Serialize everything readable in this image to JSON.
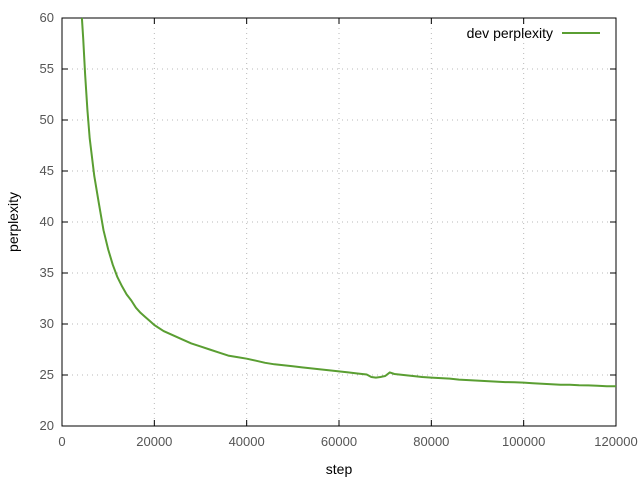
{
  "chart_data": {
    "type": "line",
    "xlabel": "step",
    "ylabel": "perplexity",
    "xlim": [
      0,
      120000
    ],
    "ylim": [
      20,
      60
    ],
    "xticks": [
      0,
      20000,
      40000,
      60000,
      80000,
      100000,
      120000
    ],
    "yticks": [
      20,
      25,
      30,
      35,
      40,
      45,
      50,
      55,
      60
    ],
    "grid": true,
    "legend_position": "top-right",
    "series": [
      {
        "name": "dev perplexity",
        "color": "#5a9e32",
        "x": [
          4300,
          4600,
          5000,
          5500,
          6000,
          7000,
          8000,
          9000,
          10000,
          11000,
          12000,
          13000,
          14000,
          15000,
          16000,
          17000,
          18000,
          19000,
          20000,
          22000,
          24000,
          26000,
          28000,
          30000,
          32000,
          34000,
          36000,
          38000,
          40000,
          42000,
          44000,
          46000,
          48000,
          50000,
          52000,
          54000,
          56000,
          58000,
          60000,
          62000,
          64000,
          66000,
          67000,
          68000,
          69000,
          70000,
          71000,
          72000,
          74000,
          76000,
          78000,
          80000,
          82000,
          84000,
          86000,
          88000,
          90000,
          92000,
          94000,
          96000,
          98000,
          100000,
          102000,
          104000,
          106000,
          108000,
          110000,
          112000,
          114000,
          116000,
          118000,
          120000
        ],
        "values": [
          60.0,
          58.0,
          54.5,
          51.0,
          48.2,
          44.5,
          41.8,
          39.2,
          37.3,
          35.8,
          34.6,
          33.7,
          32.9,
          32.3,
          31.6,
          31.1,
          30.7,
          30.3,
          29.9,
          29.3,
          28.9,
          28.5,
          28.1,
          27.8,
          27.5,
          27.2,
          26.9,
          26.75,
          26.6,
          26.4,
          26.2,
          26.05,
          25.95,
          25.85,
          25.75,
          25.65,
          25.55,
          25.45,
          25.35,
          25.25,
          25.15,
          25.05,
          24.8,
          24.75,
          24.8,
          24.9,
          25.25,
          25.1,
          25.0,
          24.9,
          24.8,
          24.75,
          24.7,
          24.65,
          24.55,
          24.5,
          24.45,
          24.4,
          24.35,
          24.3,
          24.28,
          24.25,
          24.2,
          24.15,
          24.1,
          24.05,
          24.05,
          24.0,
          23.98,
          23.95,
          23.9,
          23.9
        ]
      }
    ]
  }
}
